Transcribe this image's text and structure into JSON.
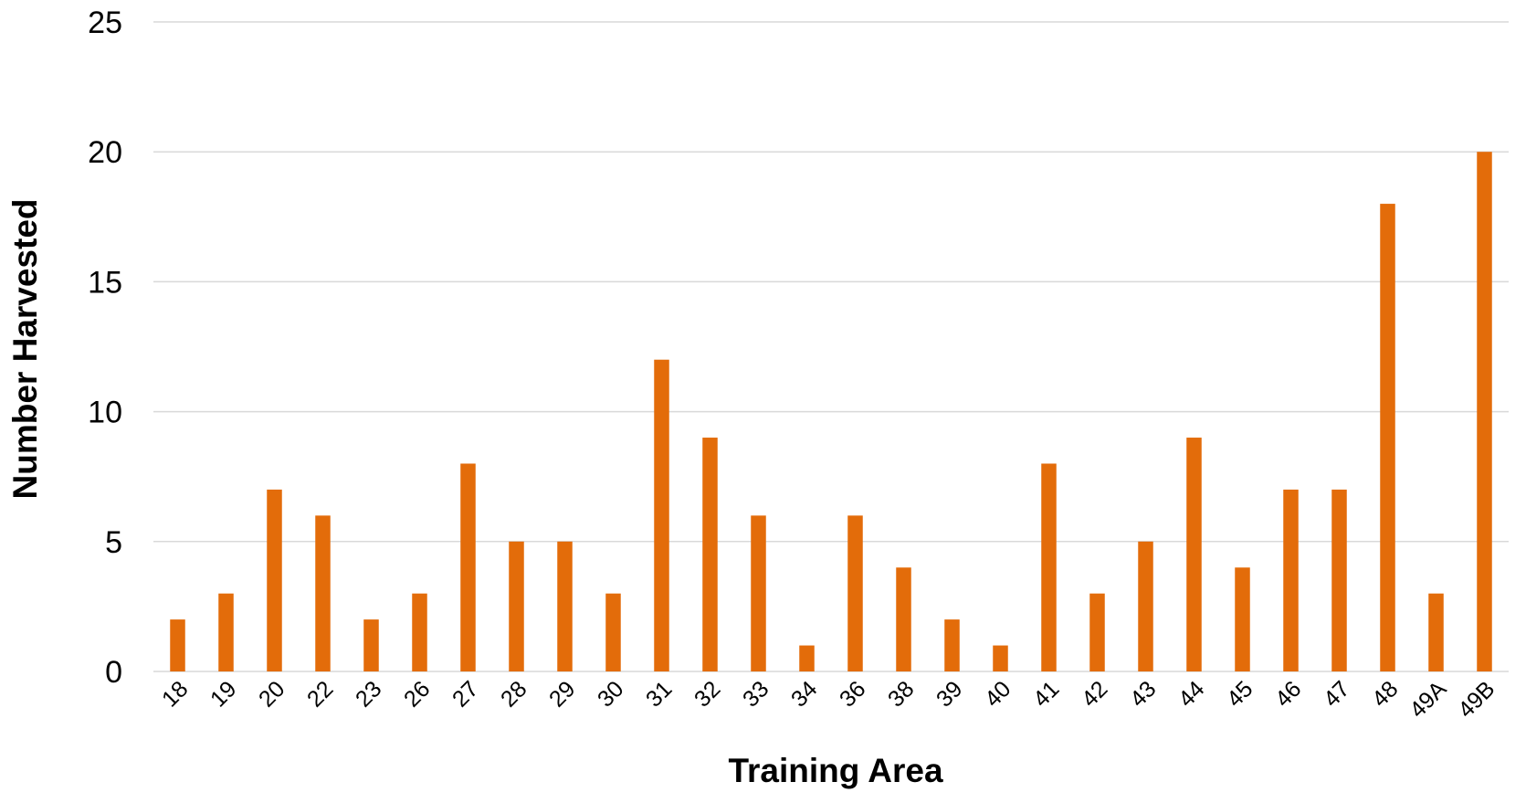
{
  "chart_data": {
    "type": "bar",
    "title": "",
    "xlabel": "Training Area",
    "ylabel": "Number Harvested",
    "ylim": [
      0,
      25
    ],
    "yticks": [
      0,
      5,
      10,
      15,
      20,
      25
    ],
    "grid": true,
    "legend": "none",
    "bar_color": "#E36C0A",
    "categories": [
      "18",
      "19",
      "20",
      "22",
      "23",
      "26",
      "27",
      "28",
      "29",
      "30",
      "31",
      "32",
      "33",
      "34",
      "36",
      "38",
      "39",
      "40",
      "41",
      "42",
      "43",
      "44",
      "45",
      "46",
      "47",
      "48",
      "49A",
      "49B"
    ],
    "values": [
      2,
      3,
      7,
      6,
      2,
      3,
      8,
      5,
      5,
      3,
      12,
      9,
      6,
      1,
      6,
      4,
      2,
      1,
      8,
      3,
      5,
      9,
      4,
      7,
      7,
      18,
      3,
      20
    ]
  }
}
